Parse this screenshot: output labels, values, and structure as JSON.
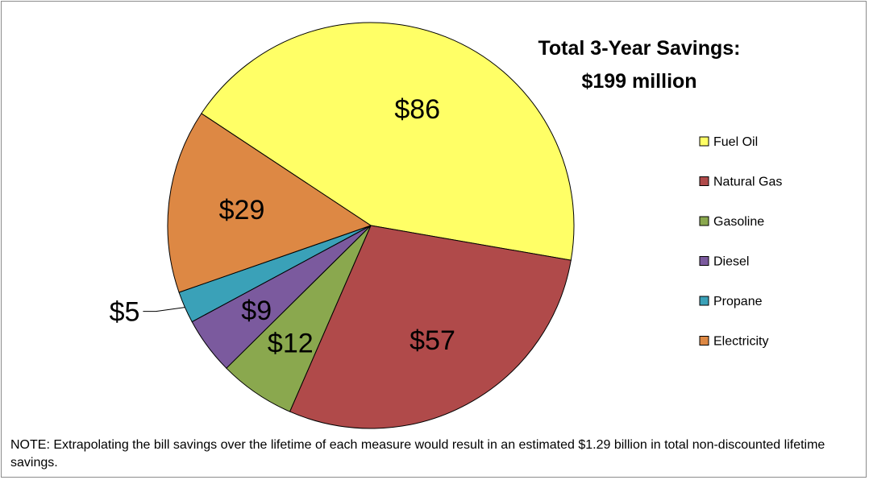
{
  "chart_data": {
    "type": "pie",
    "title_lines": [
      "Total 3-Year Savings:",
      "$199 million"
    ],
    "slices": [
      {
        "name": "Fuel Oil",
        "value": 86,
        "label": "$86",
        "color": "#ffff66"
      },
      {
        "name": "Natural Gas",
        "value": 57,
        "label": "$57",
        "color": "#b04a4a"
      },
      {
        "name": "Gasoline",
        "value": 12,
        "label": "$12",
        "color": "#8aa84e"
      },
      {
        "name": "Diesel",
        "value": 9,
        "label": "$9",
        "color": "#7b5a9e"
      },
      {
        "name": "Propane",
        "value": 5,
        "label": "$5",
        "color": "#3aa1b8"
      },
      {
        "name": "Electricity",
        "value": 29,
        "label": "$29",
        "color": "#dd8844"
      }
    ],
    "legend_position": "right"
  },
  "note": "NOTE: Extrapolating the bill savings over the lifetime of each measure would result in an estimated $1.29 billion in total non-discounted  lifetime savings."
}
